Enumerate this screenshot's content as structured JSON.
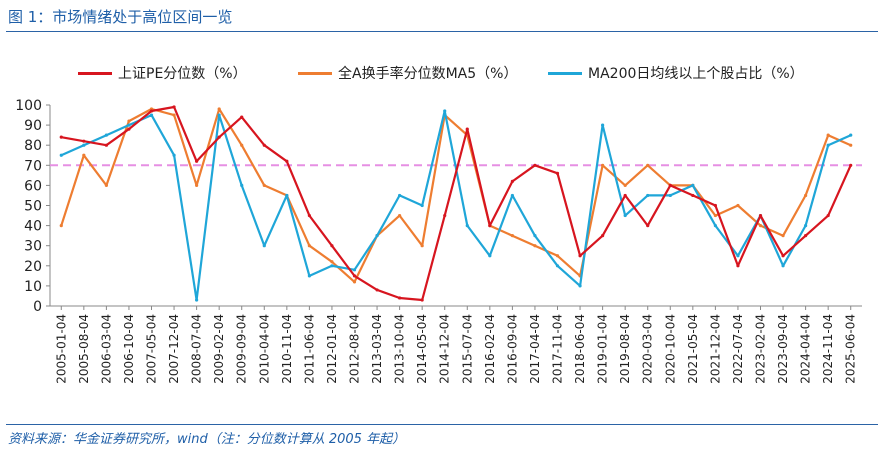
{
  "title": "图 1：市场情绪处于高位区间一览",
  "source": "资料来源：华金证券研究所，wind（注：分位数计算从 2005 年起）",
  "colors": {
    "pe": "#d7151f",
    "turnover": "#ee7d31",
    "ma200": "#1fa6d8",
    "ref": "#e68fe3"
  },
  "chart_data": {
    "type": "line",
    "title": "图 1：市场情绪处于高位区间一览",
    "xlabel": "",
    "ylabel": "",
    "ylim": [
      0,
      100
    ],
    "yticks": [
      0,
      10,
      20,
      30,
      40,
      50,
      60,
      70,
      80,
      90,
      100
    ],
    "categories": [
      "2005-01-04",
      "2005-08-04",
      "2006-03-04",
      "2006-10-04",
      "2007-05-04",
      "2007-12-04",
      "2008-07-04",
      "2009-02-04",
      "2009-09-04",
      "2010-04-04",
      "2010-11-04",
      "2011-06-04",
      "2012-01-04",
      "2012-08-04",
      "2013-03-04",
      "2013-10-04",
      "2014-05-04",
      "2014-12-04",
      "2015-07-04",
      "2016-02-04",
      "2016-09-04",
      "2017-04-04",
      "2017-11-04",
      "2018-06-04",
      "2019-01-04",
      "2019-08-04",
      "2020-03-04",
      "2020-10-04",
      "2021-05-04",
      "2021-12-04",
      "2022-07-04",
      "2023-02-04",
      "2023-09-04",
      "2024-04-04",
      "2024-11-04",
      "2025-06-04"
    ],
    "reference_line": {
      "value": 70,
      "style": "dashed"
    },
    "series": [
      {
        "name": "上证PE分位数（%）",
        "color": "#d7151f",
        "values": [
          84,
          82,
          80,
          88,
          97,
          99,
          72,
          84,
          94,
          80,
          72,
          45,
          30,
          15,
          8,
          4,
          3,
          45,
          88,
          40,
          62,
          70,
          66,
          25,
          35,
          55,
          40,
          60,
          55,
          50,
          20,
          45,
          25,
          35,
          45,
          70
        ]
      },
      {
        "name": "全A换手率分位数MA5（%）",
        "color": "#ee7d31",
        "values": [
          40,
          75,
          60,
          92,
          98,
          95,
          60,
          98,
          80,
          60,
          55,
          30,
          22,
          12,
          35,
          45,
          30,
          95,
          85,
          40,
          35,
          30,
          25,
          15,
          70,
          60,
          70,
          60,
          60,
          45,
          50,
          40,
          35,
          55,
          85,
          80
        ]
      },
      {
        "name": "MA200日均线以上个股占比（%）",
        "color": "#1fa6d8",
        "values": [
          75,
          80,
          85,
          90,
          95,
          75,
          3,
          95,
          60,
          30,
          55,
          15,
          20,
          18,
          35,
          55,
          50,
          97,
          40,
          25,
          55,
          35,
          20,
          10,
          90,
          45,
          55,
          55,
          60,
          40,
          25,
          45,
          20,
          40,
          80,
          85
        ]
      }
    ]
  }
}
